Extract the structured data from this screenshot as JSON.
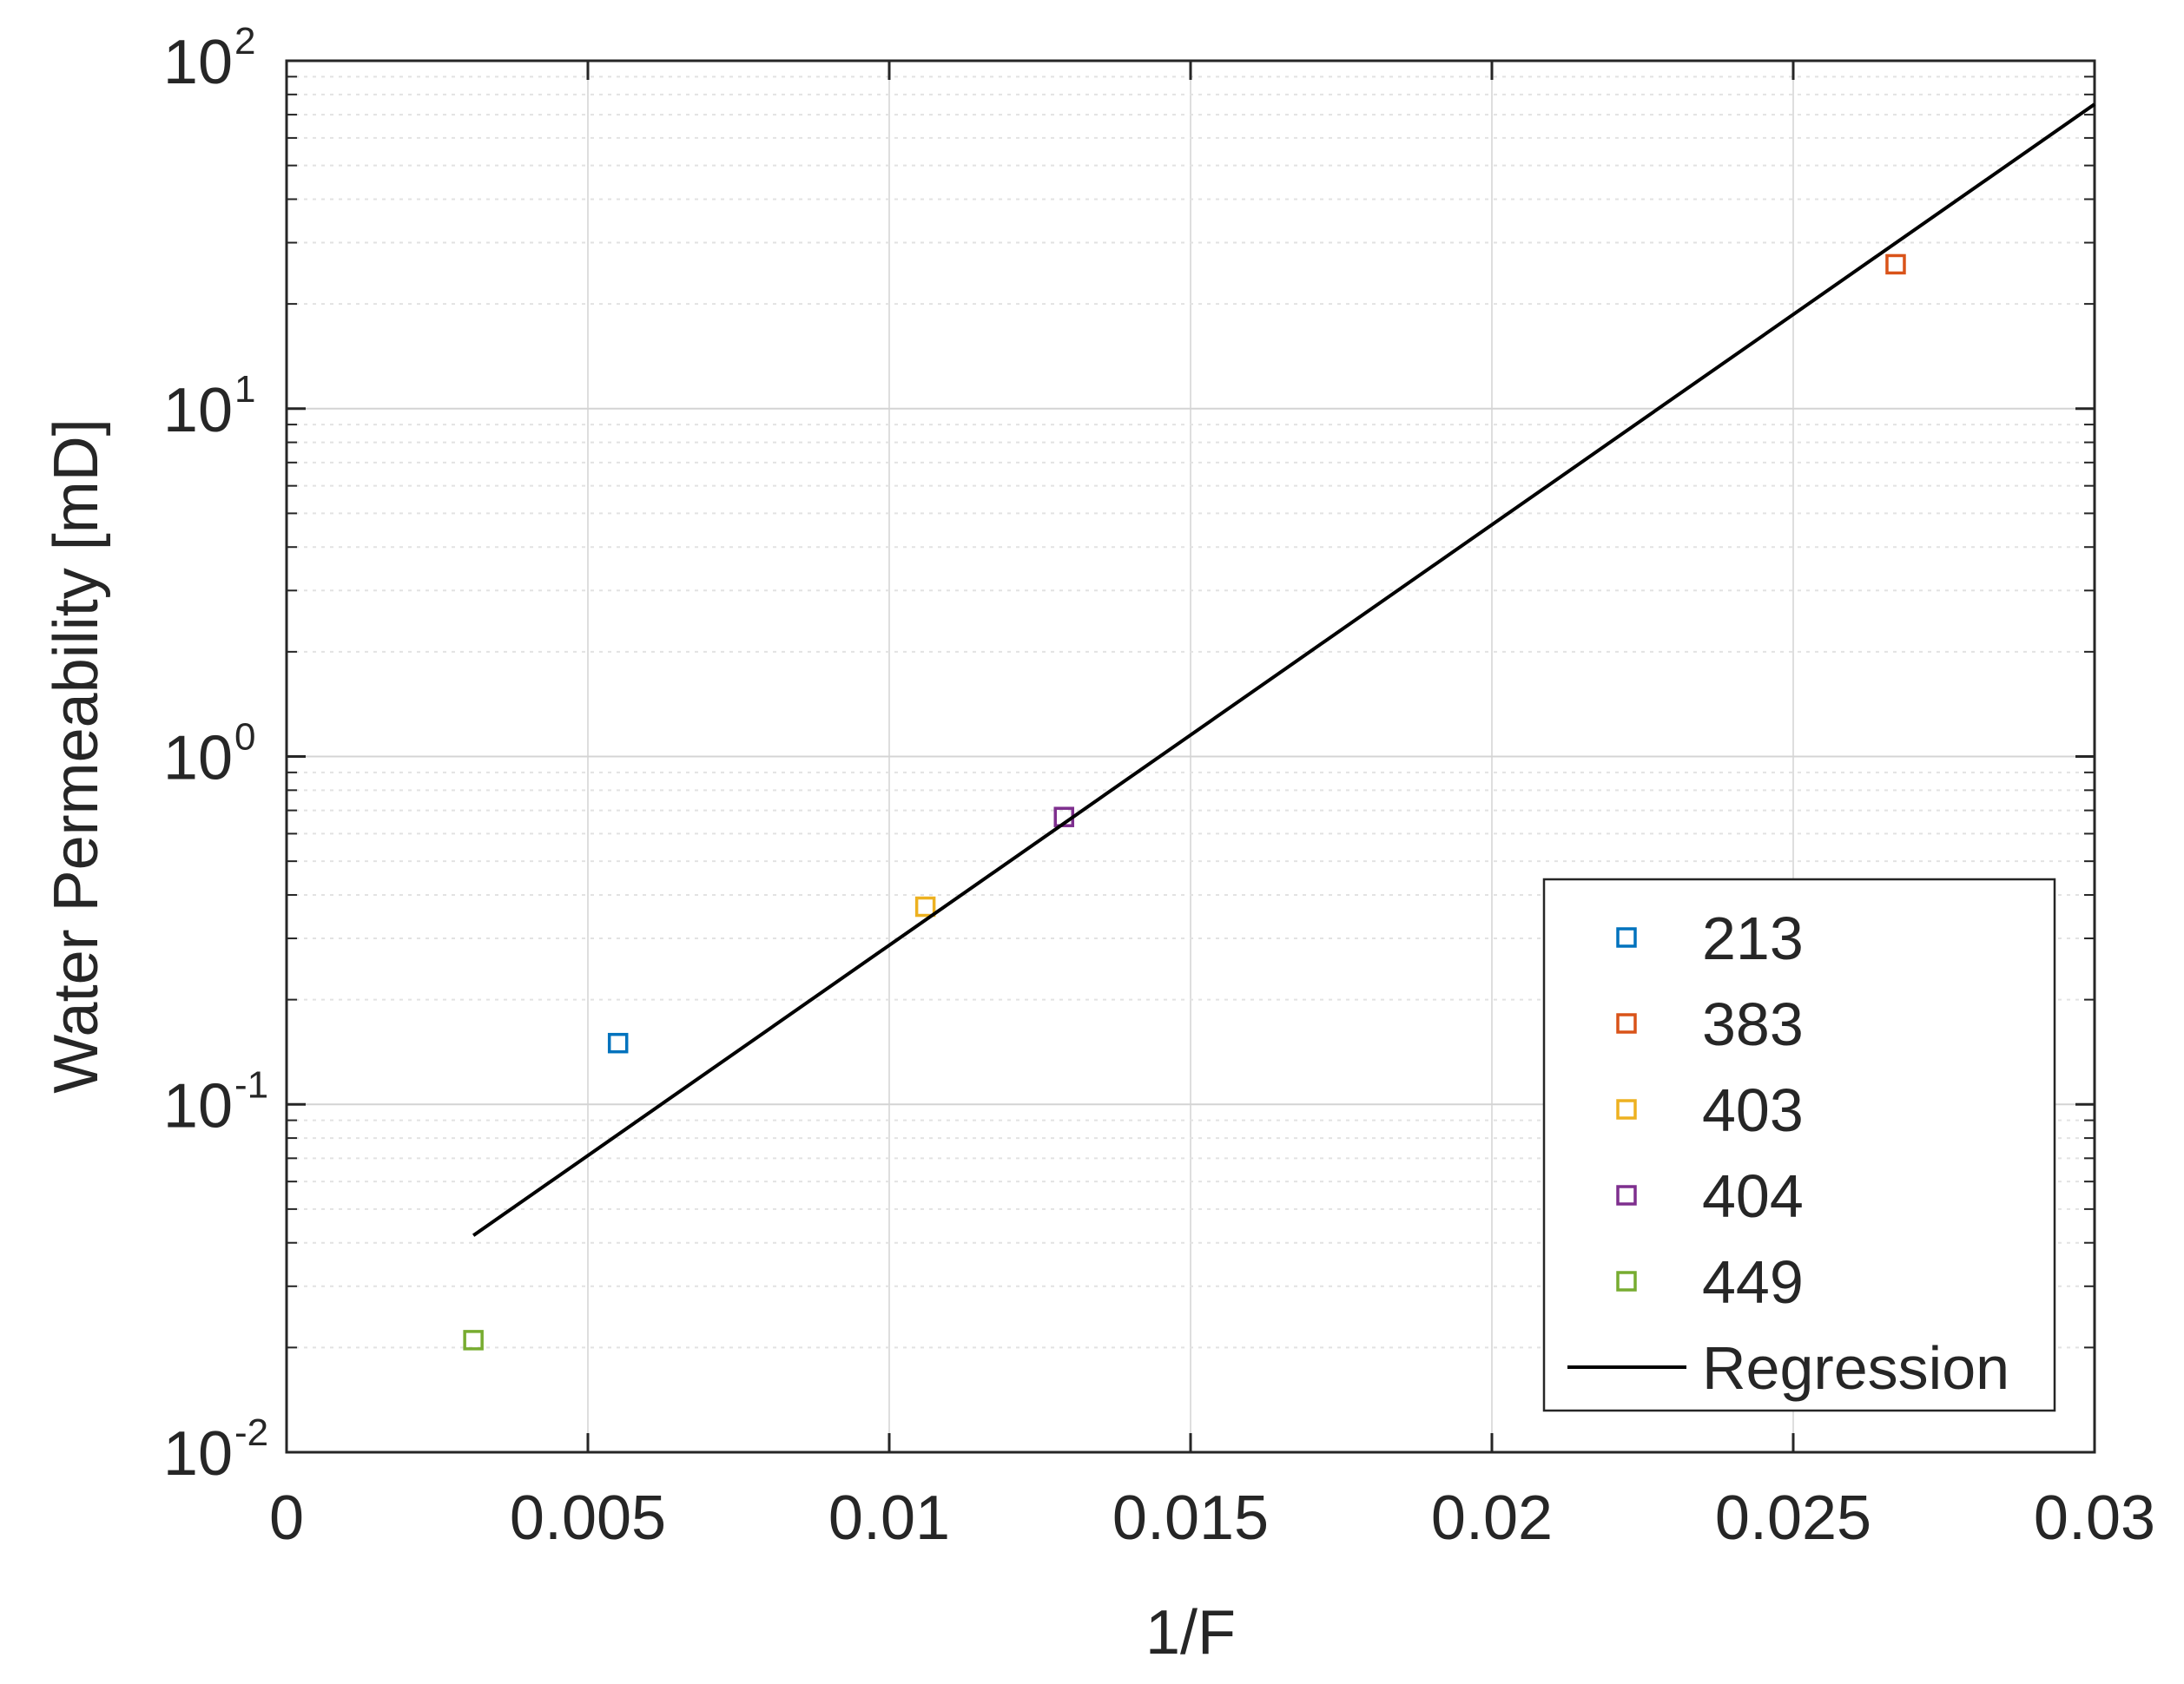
{
  "chart_data": {
    "type": "scatter",
    "title": "",
    "xlabel": "1/F",
    "ylabel": "Water Permeability [mD]",
    "xscale": "linear",
    "yscale": "log",
    "xlim": [
      0,
      0.03
    ],
    "ylim": [
      0.01,
      100
    ],
    "grid": true,
    "minor_grid_y": true,
    "legend_position": "bottom-right",
    "x_ticks": [
      {
        "value": 0,
        "label": "0"
      },
      {
        "value": 0.005,
        "label": "0.005"
      },
      {
        "value": 0.01,
        "label": "0.01"
      },
      {
        "value": 0.015,
        "label": "0.015"
      },
      {
        "value": 0.02,
        "label": "0.02"
      },
      {
        "value": 0.025,
        "label": "0.025"
      },
      {
        "value": 0.03,
        "label": "0.03"
      }
    ],
    "y_ticks": [
      {
        "value": 0.01,
        "base": "10",
        "exp": "-2"
      },
      {
        "value": 0.1,
        "base": "10",
        "exp": "-1"
      },
      {
        "value": 1,
        "base": "10",
        "exp": "0"
      },
      {
        "value": 10,
        "base": "10",
        "exp": "1"
      },
      {
        "value": 100,
        "base": "10",
        "exp": "2"
      }
    ],
    "series": [
      {
        "name": "213",
        "marker": "square",
        "color": "#0072BD",
        "points": [
          {
            "x": 0.0055,
            "y": 0.15
          }
        ]
      },
      {
        "name": "383",
        "marker": "square",
        "color": "#D95319",
        "points": [
          {
            "x": 0.0267,
            "y": 26
          }
        ]
      },
      {
        "name": "403",
        "marker": "square",
        "color": "#EDB120",
        "points": [
          {
            "x": 0.0106,
            "y": 0.37
          }
        ]
      },
      {
        "name": "404",
        "marker": "square",
        "color": "#7E2F8E",
        "points": [
          {
            "x": 0.0129,
            "y": 0.67
          }
        ]
      },
      {
        "name": "449",
        "marker": "square",
        "color": "#77AC30",
        "points": [
          {
            "x": 0.0031,
            "y": 0.021
          }
        ]
      },
      {
        "name": "Regression",
        "marker": "line",
        "color": "#000000",
        "points": [
          {
            "x": 0.0031,
            "y": 0.042
          },
          {
            "x": 0.03,
            "y": 75
          }
        ]
      }
    ]
  }
}
